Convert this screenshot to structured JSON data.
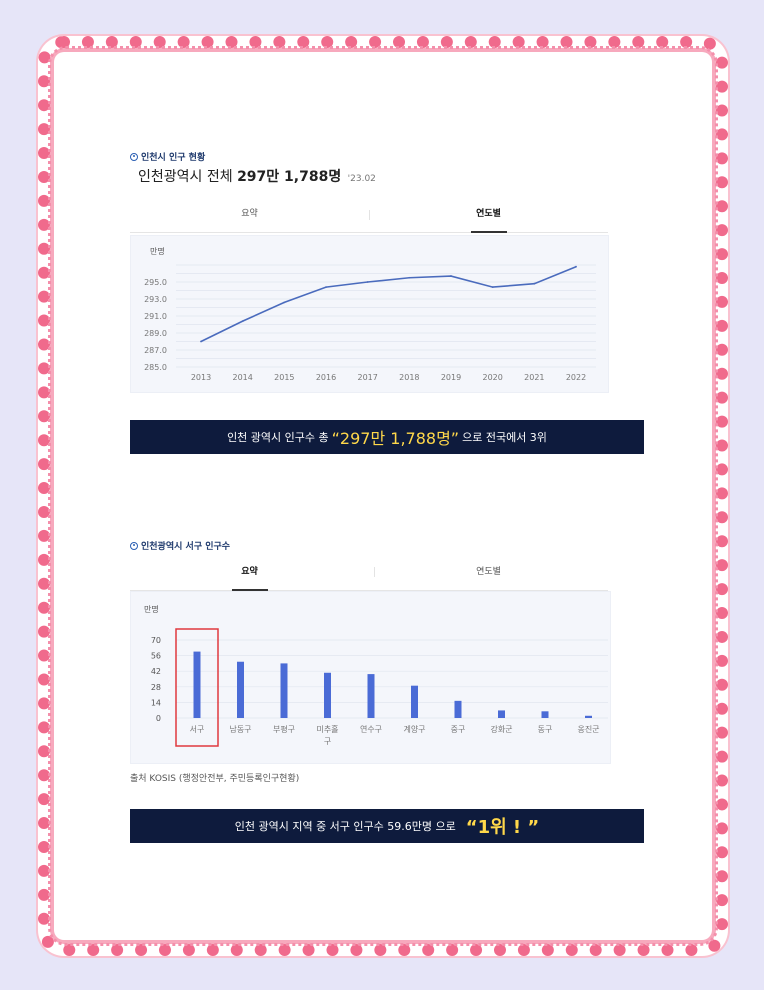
{
  "section1": {
    "title": "인천시 인구 현황",
    "total_prefix": "인천광역시 전체 ",
    "total_value": "297만 1,788명",
    "date": "'23.02",
    "tabs": [
      "요약",
      "연도별"
    ],
    "active_tab": "연도별",
    "unit": "만명"
  },
  "banner1": {
    "prefix": "인천 광역시 인구수 총 ",
    "highlight": "“297만 1,788명”",
    "suffix": "으로 전국에서 3위"
  },
  "section2": {
    "title": "인천광역시 서구 인구수",
    "tabs": [
      "요약",
      "연도별"
    ],
    "active_tab": "요약",
    "unit": "만명",
    "highlighted_category": "서구"
  },
  "source": "출처 KOSIS (행정안전부, 주민등록인구현황)",
  "banner2": {
    "prefix": "인천 광역시 지역 중 서구 인구수 59.6만명 으로",
    "highlight": "“1위 ! ”"
  },
  "colors": {
    "line": "#4a6bbd",
    "bar": "#4a6bd6",
    "highlight_box": "#e0383e",
    "banner_bg": "#0e1b3d",
    "banner_highlight": "#ffd84a",
    "frame": "#f06a8c"
  },
  "chart_data": [
    {
      "type": "line",
      "categories": [
        "2013",
        "2014",
        "2015",
        "2016",
        "2017",
        "2018",
        "2019",
        "2020",
        "2021",
        "2022"
      ],
      "series": [
        {
          "values": [
            288.0,
            290.4,
            292.6,
            294.4,
            295.0,
            295.5,
            295.7,
            294.4,
            294.8,
            296.8
          ]
        }
      ],
      "ylabel": "만명",
      "ylim": [
        285.0,
        297.0
      ],
      "yticks": [
        "285.0",
        "287.0",
        "289.0",
        "291.0",
        "293.0",
        "295.0"
      ],
      "grid": true
    },
    {
      "type": "bar",
      "categories": [
        "서구",
        "남동구",
        "부평구",
        "미추홀구",
        "연수구",
        "계양구",
        "중구",
        "강화군",
        "동구",
        "옹진군"
      ],
      "values": [
        59.6,
        50.5,
        49.0,
        40.6,
        39.4,
        29.0,
        15.4,
        6.8,
        6.0,
        2.0
      ],
      "ylabel": "만명",
      "ylim": [
        0,
        70
      ],
      "yticks": [
        0,
        14,
        28,
        42,
        56,
        70
      ],
      "grid": true
    }
  ]
}
